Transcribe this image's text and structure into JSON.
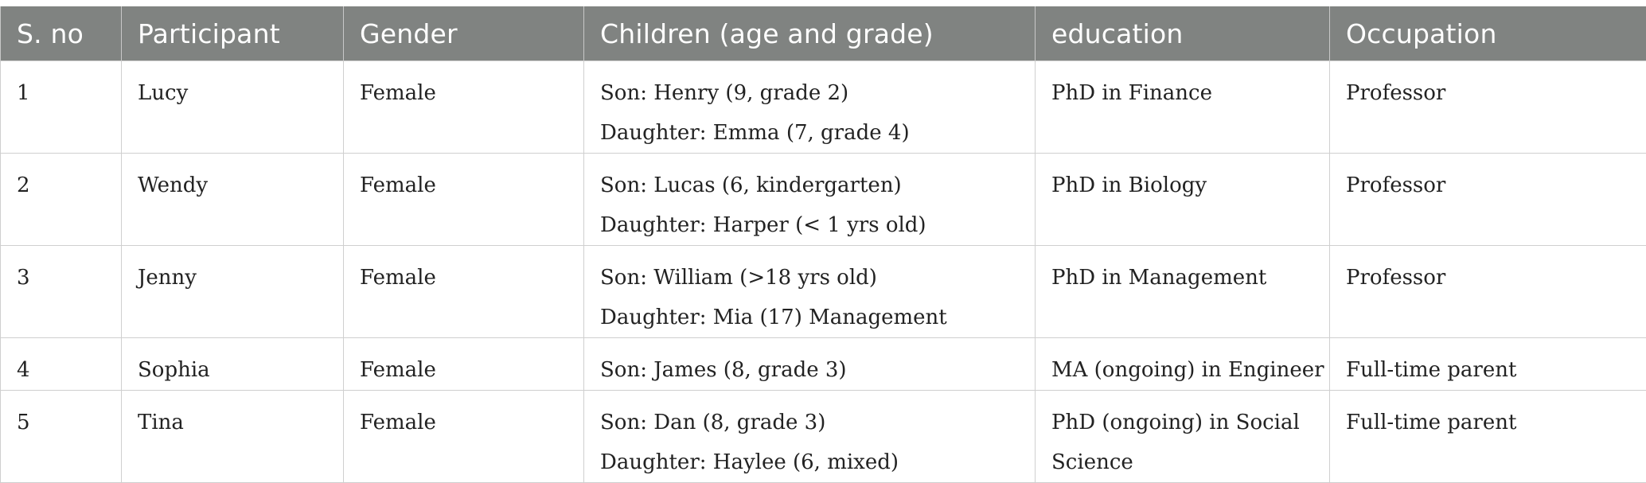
{
  "table": {
    "headers": [
      "S. no",
      "Participant",
      "Gender",
      "Children (age and grade)",
      "education",
      "Occupation"
    ],
    "rows": [
      {
        "sno": "1",
        "participant": "Lucy",
        "gender": "Female",
        "children": [
          "Son: Henry (9, grade 2)",
          "Daughter: Emma (7, grade 4)"
        ],
        "education": [
          "PhD in Finance"
        ],
        "occupation": "Professor"
      },
      {
        "sno": "2",
        "participant": "Wendy",
        "gender": "Female",
        "children": [
          "Son: Lucas (6, kindergarten)",
          "Daughter: Harper (< 1 yrs old)"
        ],
        "education": [
          "PhD in Biology"
        ],
        "occupation": "Professor"
      },
      {
        "sno": "3",
        "participant": "Jenny",
        "gender": "Female",
        "children": [
          "Son: William (>18 yrs old)",
          "Daughter: Mia (17) Management"
        ],
        "education": [
          "PhD in Management"
        ],
        "occupation": "Professor"
      },
      {
        "sno": "4",
        "participant": "Sophia",
        "gender": "Female",
        "children": [
          "Son: James (8, grade 3)"
        ],
        "education": [
          "MA (ongoing) in Engineer"
        ],
        "occupation": "Full-time parent"
      },
      {
        "sno": "5",
        "participant": "Tina",
        "gender": "Female",
        "children": [
          "Son: Dan (8, grade 3)",
          "Daughter: Haylee (6, mixed)"
        ],
        "education": [
          "PhD (ongoing) in Social",
          "Science"
        ],
        "occupation": "Full-time parent"
      }
    ]
  }
}
